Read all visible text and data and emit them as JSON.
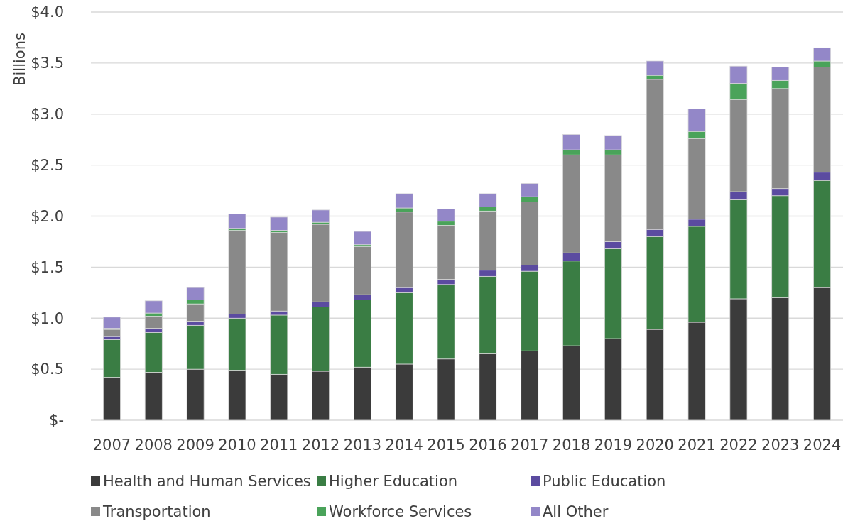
{
  "chart_data": {
    "type": "bar",
    "stacked": true,
    "ylabel": "Billions",
    "categories": [
      "2007",
      "2008",
      "2009",
      "2010",
      "2011",
      "2012",
      "2013",
      "2014",
      "2015",
      "2016",
      "2017",
      "2018",
      "2019",
      "2020",
      "2021",
      "2022",
      "2023",
      "2024"
    ],
    "series": [
      {
        "name": "Health and Human Services",
        "color": "#3b3b3b",
        "values": [
          0.42,
          0.47,
          0.5,
          0.49,
          0.45,
          0.48,
          0.52,
          0.55,
          0.6,
          0.65,
          0.68,
          0.73,
          0.8,
          0.89,
          0.96,
          1.19,
          1.2,
          1.3
        ]
      },
      {
        "name": "Higher Education",
        "color": "#3a7d44",
        "values": [
          0.37,
          0.39,
          0.43,
          0.51,
          0.58,
          0.63,
          0.66,
          0.7,
          0.73,
          0.76,
          0.78,
          0.83,
          0.88,
          0.91,
          0.94,
          0.97,
          1.0,
          1.05
        ]
      },
      {
        "name": "Public Education",
        "color": "#5b4ba0",
        "values": [
          0.03,
          0.04,
          0.04,
          0.04,
          0.04,
          0.05,
          0.05,
          0.05,
          0.05,
          0.06,
          0.06,
          0.08,
          0.07,
          0.07,
          0.07,
          0.08,
          0.07,
          0.08
        ]
      },
      {
        "name": "Transportation",
        "color": "#898989",
        "values": [
          0.07,
          0.12,
          0.17,
          0.82,
          0.77,
          0.76,
          0.47,
          0.74,
          0.53,
          0.58,
          0.62,
          0.96,
          0.85,
          1.47,
          0.79,
          0.9,
          0.98,
          1.03
        ]
      },
      {
        "name": "Workforce Services",
        "color": "#4aa35a",
        "values": [
          0.01,
          0.03,
          0.04,
          0.02,
          0.02,
          0.02,
          0.02,
          0.04,
          0.04,
          0.04,
          0.05,
          0.05,
          0.05,
          0.04,
          0.07,
          0.16,
          0.08,
          0.06
        ]
      },
      {
        "name": "All Other",
        "color": "#9387c8",
        "values": [
          0.11,
          0.12,
          0.12,
          0.14,
          0.13,
          0.12,
          0.13,
          0.14,
          0.12,
          0.13,
          0.13,
          0.15,
          0.14,
          0.14,
          0.22,
          0.17,
          0.13,
          0.13
        ]
      }
    ],
    "ylim": [
      0,
      4
    ],
    "yticks": [
      {
        "value": 0,
        "label": "$-"
      },
      {
        "value": 0.5,
        "label": "$0.5"
      },
      {
        "value": 1,
        "label": "$1.0"
      },
      {
        "value": 1.5,
        "label": "$1.5"
      },
      {
        "value": 2,
        "label": "$2.0"
      },
      {
        "value": 2.5,
        "label": "$2.5"
      },
      {
        "value": 3,
        "label": "$3.0"
      },
      {
        "value": 3.5,
        "label": "$3.5"
      },
      {
        "value": 4,
        "label": "$4.0"
      }
    ],
    "grid": "y",
    "legend": "bottom"
  }
}
